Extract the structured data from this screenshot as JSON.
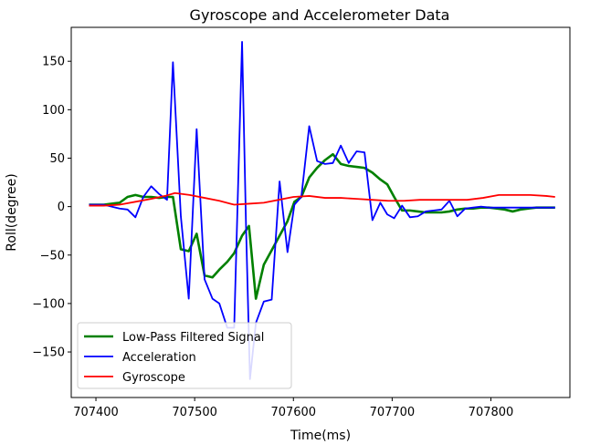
{
  "chart_data": {
    "type": "line",
    "title": "Gyroscope and Accelerometer Data",
    "xlabel": "Time(ms)",
    "ylabel": "Roll(degree)",
    "xlim": [
      707375,
      707880
    ],
    "ylim": [
      -197,
      185
    ],
    "xticks": [
      707400,
      707500,
      707600,
      707700,
      707800
    ],
    "yticks": [
      -150,
      -100,
      -50,
      0,
      50,
      100,
      150
    ],
    "grid": false,
    "legend_position": "lower-left",
    "series": [
      {
        "name": "Low-Pass Filtered Signal",
        "color": "#008000",
        "x": [
          707393,
          707408,
          707424,
          707432,
          707440,
          707448,
          707456,
          707464,
          707472,
          707478,
          707486,
          707494,
          707502,
          707510,
          707518,
          707525,
          707533,
          707540,
          707548,
          707555,
          707562,
          707570,
          707578,
          707586,
          707594,
          707601,
          707608,
          707616,
          707624,
          707632,
          707640,
          707648,
          707656,
          707664,
          707672,
          707680,
          707688,
          707695,
          707702,
          707710,
          707718,
          707726,
          707734,
          707742,
          707750,
          707758,
          707766,
          707774,
          707782,
          707790,
          707798,
          707806,
          707814,
          707822,
          707830,
          707838,
          707846,
          707854,
          707865
        ],
        "y": [
          2,
          2,
          4,
          10,
          12,
          10,
          10,
          9,
          10,
          10,
          -44,
          -46,
          -28,
          -71,
          -73,
          -65,
          -57,
          -48,
          -30,
          -20,
          -95,
          -60,
          -45,
          -30,
          -15,
          5,
          10,
          30,
          40,
          48,
          54,
          44,
          42,
          41,
          40,
          35,
          28,
          23,
          10,
          -4,
          -4,
          -5,
          -6,
          -6,
          -6,
          -5,
          -3,
          -2,
          -2,
          -1,
          -1,
          -2,
          -3,
          -5,
          -3,
          -2,
          -1,
          -1,
          -1
        ]
      },
      {
        "name": "Acceleration",
        "color": "#0000ff",
        "x": [
          707393,
          707408,
          707424,
          707432,
          707440,
          707448,
          707456,
          707464,
          707472,
          707478,
          707486,
          707494,
          707502,
          707510,
          707518,
          707525,
          707533,
          707540,
          707548,
          707552,
          707556,
          707562,
          707570,
          707578,
          707586,
          707594,
          707601,
          707608,
          707616,
          707624,
          707632,
          707640,
          707648,
          707656,
          707664,
          707672,
          707680,
          707688,
          707695,
          707702,
          707710,
          707718,
          707726,
          707734,
          707742,
          707750,
          707758,
          707766,
          707774,
          707782,
          707790,
          707798,
          707806,
          707814,
          707822,
          707830,
          707838,
          707846,
          707854,
          707865
        ],
        "y": [
          2,
          2,
          -2,
          -3,
          -11,
          10,
          21,
          13,
          7,
          149,
          -10,
          -95,
          80,
          -75,
          -95,
          -100,
          -125,
          -125,
          170,
          -20,
          -178,
          -120,
          -98,
          -96,
          26,
          -47,
          2,
          10,
          83,
          47,
          44,
          45,
          63,
          45,
          57,
          56,
          -14,
          4,
          -8,
          -12,
          1,
          -11,
          -10,
          -5,
          -4,
          -3,
          6,
          -10,
          -2,
          -1,
          0,
          -1,
          -1,
          -1,
          -1,
          -1,
          -1,
          -1,
          -1,
          -1
        ]
      },
      {
        "name": "Gyroscope",
        "color": "#ff0000",
        "x": [
          707393,
          707408,
          707424,
          707440,
          707456,
          707470,
          707480,
          707495,
          707510,
          707525,
          707540,
          707555,
          707570,
          707585,
          707600,
          707616,
          707632,
          707648,
          707664,
          707680,
          707696,
          707712,
          707728,
          707744,
          707760,
          707776,
          707792,
          707808,
          707824,
          707840,
          707856,
          707865
        ],
        "y": [
          1,
          1,
          2,
          5,
          8,
          11,
          14,
          12,
          9,
          6,
          2,
          3,
          4,
          7,
          10,
          11,
          9,
          9,
          8,
          7,
          6,
          6,
          7,
          7,
          7,
          7,
          9,
          12,
          12,
          12,
          11,
          10
        ]
      }
    ]
  }
}
